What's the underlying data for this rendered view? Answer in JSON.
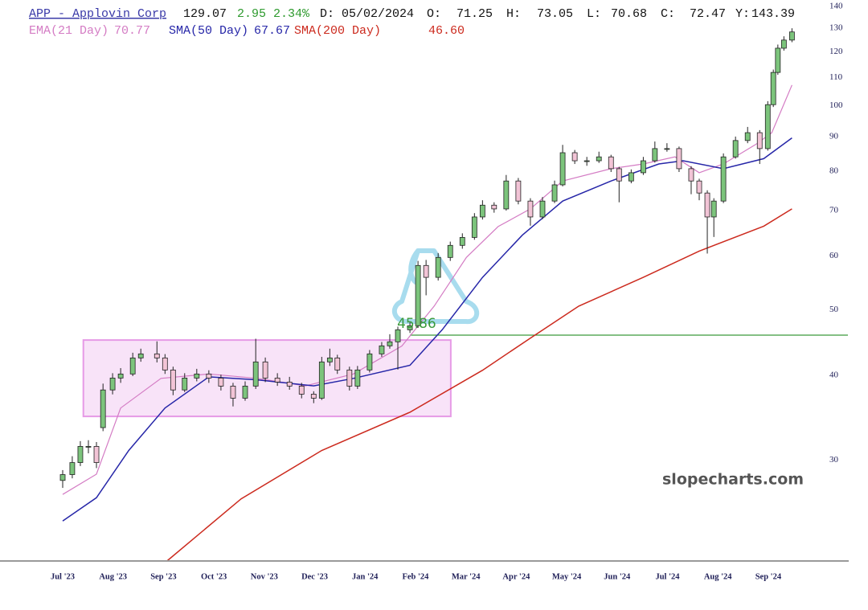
{
  "chart_data": {
    "type": "candlestick",
    "title": "APP - Applovin Corp",
    "quote": {
      "last": 129.07,
      "change": 2.95,
      "change_pct": {
        "value": 2.34,
        "label": "2.34%"
      },
      "date": "D: 05/02/2024",
      "open_label": "O:",
      "open": 71.25,
      "high_label": "H:",
      "high": 73.05,
      "low_label": "L:",
      "low": 70.68,
      "close_label": "C:",
      "close": 72.47,
      "y_label": "Y:",
      "y_value": 143.39
    },
    "watermark": "slopecharts.com",
    "log_scale": true,
    "xlim": [
      -1.244,
      15.58
    ],
    "xticks": [
      {
        "value": 0,
        "label": "Jul '23"
      },
      {
        "value": 1,
        "label": "Aug '23"
      },
      {
        "value": 2,
        "label": "Sep '23"
      },
      {
        "value": 3,
        "label": "Oct '23"
      },
      {
        "value": 4,
        "label": "Nov '23"
      },
      {
        "value": 5,
        "label": "Dec '23"
      },
      {
        "value": 6,
        "label": "Jan '24"
      },
      {
        "value": 7,
        "label": "Feb '24"
      },
      {
        "value": 8,
        "label": "Mar '24"
      },
      {
        "value": 9,
        "label": "Apr '24"
      },
      {
        "value": 10,
        "label": "May '24"
      },
      {
        "value": 11,
        "label": "Jun '24"
      },
      {
        "value": 12,
        "label": "Jul '24"
      },
      {
        "value": 13,
        "label": "Aug '24"
      },
      {
        "value": 14,
        "label": "Sep '24"
      }
    ],
    "ylim": [
      21.3,
      143.1
    ],
    "yticks": [
      30,
      40,
      50,
      60,
      70,
      80,
      90,
      100,
      110,
      120,
      130,
      140
    ],
    "candles": {
      "up_color": "#7cc47c",
      "down_color": "#f2c4d6",
      "x": [
        0,
        0.19,
        0.35,
        0.51,
        0.67,
        0.8,
        0.99,
        1.15,
        1.39,
        1.55,
        1.87,
        2.03,
        2.19,
        2.42,
        2.66,
        2.9,
        3.14,
        3.38,
        3.62,
        3.83,
        4.02,
        4.26,
        4.5,
        4.74,
        4.98,
        5.14,
        5.3,
        5.45,
        5.69,
        5.85,
        6.09,
        6.33,
        6.49,
        6.65,
        6.89,
        7.05,
        7.21,
        7.45,
        7.69,
        7.93,
        8.17,
        8.33,
        8.56,
        8.8,
        9.04,
        9.28,
        9.52,
        9.76,
        9.92,
        10.16,
        10.4,
        10.64,
        10.88,
        11.04,
        11.28,
        11.52,
        11.75,
        11.99,
        12.23,
        12.47,
        12.63,
        12.79,
        12.92,
        13.11,
        13.35,
        13.59,
        13.83,
        13.99,
        14.1,
        14.19,
        14.31,
        14.47
      ],
      "open": [
        28.0,
        28.56,
        29.75,
        31.43,
        31.43,
        33.5,
        38.07,
        39.64,
        40.19,
        42.44,
        43.03,
        42.44,
        40.74,
        38.07,
        39.64,
        40.19,
        39.64,
        38.57,
        37.02,
        38.57,
        41.87,
        39.64,
        39.1,
        38.57,
        37.53,
        37.02,
        41.87,
        42.44,
        40.74,
        38.57,
        40.74,
        43.03,
        44.22,
        44.83,
        46.7,
        47.35,
        58.1,
        55.8,
        59.7,
        62.2,
        63.9,
        68.5,
        71.3,
        70.4,
        77.4,
        72.3,
        68.5,
        72.3,
        76.4,
        85.2,
        82.9,
        82.9,
        84.0,
        80.7,
        77.4,
        79.6,
        82.9,
        86.4,
        86.4,
        80.7,
        77.4,
        74.3,
        68.5,
        72.3,
        84.0,
        88.8,
        91.2,
        86.4,
        100.3,
        111.9,
        121.5,
        124.9
      ],
      "high": [
        29.0,
        30.4,
        32.0,
        32.1,
        31.9,
        38.9,
        40.3,
        41.0,
        43.2,
        43.8,
        44.9,
        43.0,
        41.2,
        40.3,
        40.9,
        40.7,
        40.1,
        39.0,
        39.2,
        45.3,
        42.5,
        40.3,
        39.8,
        39.0,
        37.9,
        42.6,
        43.8,
        42.9,
        41.2,
        41.3,
        43.6,
        44.8,
        46.0,
        47.2,
        48.0,
        59.0,
        59.2,
        60.6,
        63.0,
        64.8,
        69.4,
        72.5,
        72.0,
        79.0,
        78.2,
        73.0,
        73.3,
        77.5,
        87.5,
        86.0,
        84.0,
        85.5,
        84.6,
        81.2,
        80.5,
        84.0,
        88.5,
        88.0,
        87.0,
        81.4,
        78.0,
        75.0,
        73.0,
        85.0,
        90.0,
        93.0,
        92.0,
        101.5,
        113.0,
        123.0,
        126.5,
        130.0
      ],
      "low": [
        27.3,
        28.2,
        29.4,
        30.7,
        29.2,
        33.1,
        37.5,
        39.0,
        39.9,
        41.9,
        41.8,
        40.2,
        37.4,
        37.8,
        39.2,
        39.0,
        38.0,
        36.0,
        36.7,
        38.2,
        39.1,
        38.6,
        38.1,
        37.0,
        36.4,
        36.8,
        41.3,
        40.2,
        38.0,
        38.2,
        40.4,
        42.6,
        43.8,
        40.8,
        46.2,
        47.0,
        52.5,
        55.2,
        59.0,
        61.5,
        63.4,
        67.9,
        69.5,
        70.0,
        71.5,
        66.5,
        68.0,
        71.8,
        76.0,
        82.0,
        81.5,
        82.3,
        79.8,
        72.0,
        76.8,
        79.0,
        82.4,
        85.5,
        79.8,
        74.0,
        72.5,
        60.5,
        64.0,
        71.8,
        83.5,
        88.0,
        82.0,
        85.8,
        99.5,
        111.0,
        120.5,
        124.0
      ],
      "close": [
        28.56,
        29.75,
        31.43,
        31.43,
        29.75,
        38.07,
        39.64,
        40.19,
        42.44,
        43.03,
        42.44,
        40.74,
        38.07,
        39.64,
        40.19,
        39.64,
        38.57,
        37.02,
        38.57,
        41.87,
        39.64,
        39.1,
        38.57,
        37.53,
        37.02,
        41.87,
        42.44,
        40.74,
        38.57,
        40.74,
        43.03,
        44.22,
        44.83,
        46.7,
        47.35,
        58.1,
        55.8,
        59.7,
        62.2,
        63.9,
        68.5,
        71.3,
        70.4,
        77.4,
        72.3,
        68.5,
        72.3,
        76.4,
        85.2,
        82.9,
        82.9,
        84.0,
        80.7,
        77.4,
        79.6,
        82.9,
        86.4,
        86.4,
        80.7,
        77.4,
        74.3,
        68.5,
        72.3,
        84.0,
        88.8,
        91.2,
        86.4,
        100.3,
        111.9,
        121.5,
        124.9,
        128.4
      ]
    },
    "series": [
      {
        "name": "EMA(21 Day)",
        "color": "#d47cc4",
        "last": 70.77,
        "x": [
          0,
          0.67,
          1.15,
          1.95,
          2.9,
          3.86,
          4.82,
          5.77,
          6.73,
          7.37,
          8.01,
          8.64,
          9.28,
          9.92,
          10.88,
          11.52,
          12.15,
          12.63,
          13.11,
          13.75,
          14.07,
          14.47
        ],
        "values": [
          26.7,
          28.6,
          35.8,
          39.6,
          40.2,
          39.6,
          38.6,
          40.2,
          44.2,
          50.6,
          59.7,
          66.3,
          70.4,
          77.4,
          80.7,
          82.0,
          84.0,
          79.6,
          82.0,
          87.6,
          91.2,
          107.2
        ]
      },
      {
        "name": "SMA(50 Day)",
        "color": "#2626a8",
        "last": 67.67,
        "x": [
          0,
          0.67,
          1.31,
          2.03,
          2.9,
          3.86,
          4.98,
          5.77,
          6.89,
          7.53,
          8.33,
          9.12,
          9.92,
          10.88,
          11.83,
          12.31,
          13.11,
          13.91,
          14.47
        ],
        "values": [
          24.4,
          26.4,
          31.0,
          35.8,
          39.8,
          39.4,
          38.6,
          39.6,
          41.4,
          46.7,
          55.8,
          64.4,
          72.3,
          77.4,
          82.0,
          82.9,
          80.7,
          83.5,
          89.6
        ]
      },
      {
        "name": "SMA(200 Day)",
        "color": "#cc2a1e",
        "last": {
          "value": 46.6,
          "label": "46.60"
        },
        "x": [
          2.07,
          3.54,
          5.14,
          6.89,
          8.33,
          9.28,
          10.24,
          11.52,
          12.63,
          13.91,
          14.47
        ],
        "values": [
          21.3,
          26.3,
          31.0,
          35.3,
          40.7,
          45.4,
          50.6,
          55.8,
          61.0,
          66.4,
          70.4
        ]
      }
    ],
    "level": {
      "value": 45.86,
      "start": 6.89,
      "color": "#3a9a3a"
    },
    "box": {
      "x": [
        0.41,
        7.7
      ],
      "y": [
        34.8,
        45.1
      ],
      "color": "#e69ae6"
    }
  }
}
